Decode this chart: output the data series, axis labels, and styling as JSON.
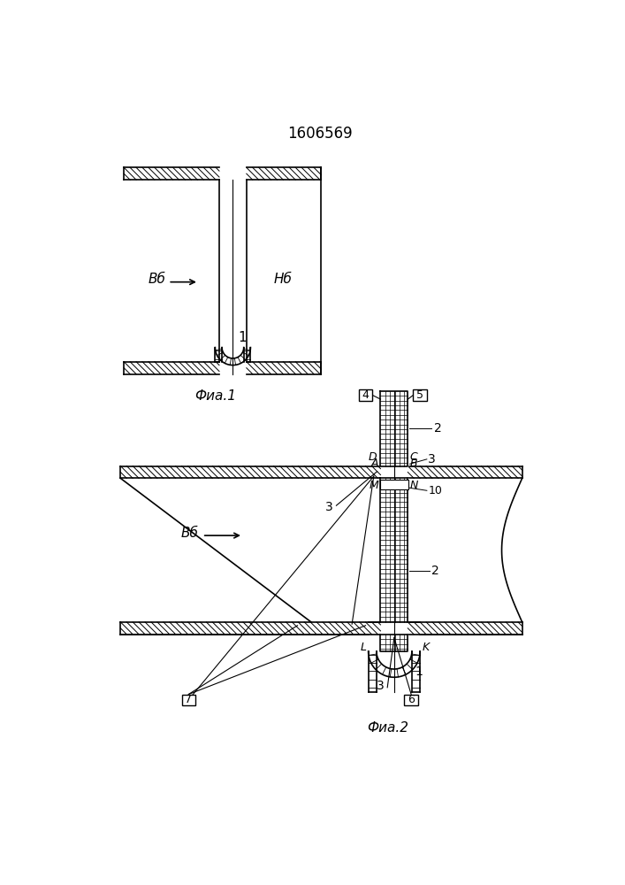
{
  "title": "1606569",
  "fig1_label": "Фиа.1",
  "fig2_label": "Фиа.2",
  "vb_label": "Вб",
  "nb_label": "Нб",
  "bg_color": "#ffffff",
  "lc": "#000000"
}
